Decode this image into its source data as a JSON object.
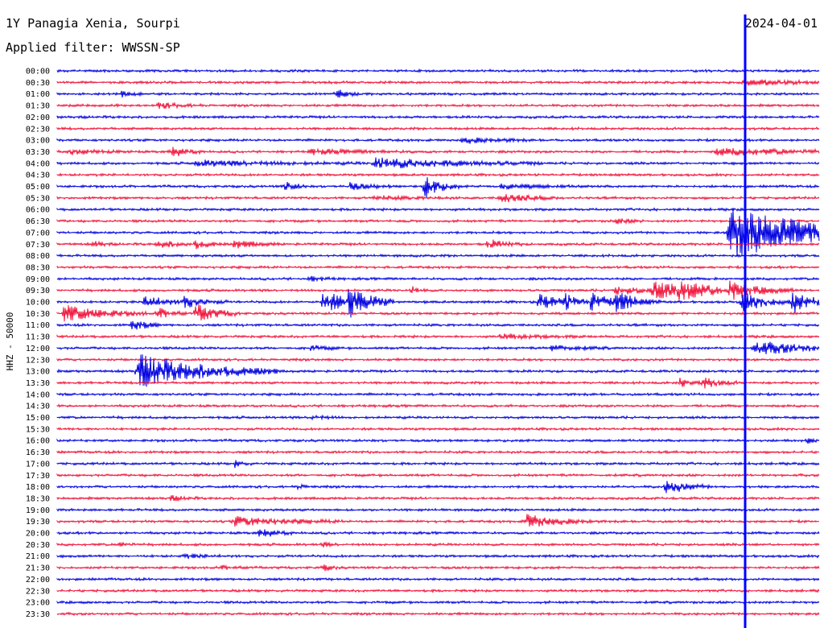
{
  "header": {
    "station": "1Y Panagia Xenia, Sourpi",
    "filter": "Applied filter: WWSSN-SP",
    "date": "2024-04-01"
  },
  "chart_data": {
    "type": "line",
    "title": "1Y Panagia Xenia, Sourpi",
    "subtitle": "Applied filter: WWSSN-SP",
    "ylabel": "HHZ - 50000",
    "colors": [
      "#0000e0",
      "#f0143c"
    ],
    "rows": [
      "00:00",
      "00:30",
      "01:00",
      "01:30",
      "02:00",
      "02:30",
      "03:00",
      "03:30",
      "04:00",
      "04:30",
      "05:00",
      "05:30",
      "06:00",
      "06:30",
      "07:00",
      "07:30",
      "08:00",
      "08:30",
      "09:00",
      "09:30",
      "10:00",
      "10:30",
      "11:00",
      "11:30",
      "12:00",
      "12:30",
      "13:00",
      "13:30",
      "14:00",
      "14:30",
      "15:00",
      "15:30",
      "16:00",
      "16:30",
      "17:00",
      "17:30",
      "18:00",
      "18:30",
      "19:00",
      "19:30",
      "20:00",
      "20:30",
      "21:00",
      "21:30",
      "22:00",
      "22:30",
      "23:00",
      "23:30"
    ],
    "minutes_per_row": 30,
    "events": [
      {
        "row": "00:30",
        "minute": 27,
        "amp": 0.5,
        "dur": 2
      },
      {
        "row": "01:00",
        "minute": 2.5,
        "amp": 0.5,
        "dur": 0.4
      },
      {
        "row": "01:00",
        "minute": 11,
        "amp": 0.8,
        "dur": 0.4
      },
      {
        "row": "01:30",
        "minute": 4,
        "amp": 0.5,
        "dur": 0.8
      },
      {
        "row": "03:00",
        "minute": 16,
        "amp": 0.5,
        "dur": 1.2
      },
      {
        "row": "03:30",
        "minute": 0.5,
        "amp": 0.4,
        "dur": 1.2
      },
      {
        "row": "03:30",
        "minute": 4.5,
        "amp": 0.9,
        "dur": 0.6
      },
      {
        "row": "03:30",
        "minute": 10,
        "amp": 0.4,
        "dur": 2
      },
      {
        "row": "03:30",
        "minute": 26,
        "amp": 0.6,
        "dur": 3.5
      },
      {
        "row": "04:00",
        "minute": 5.5,
        "amp": 0.5,
        "dur": 3
      },
      {
        "row": "04:00",
        "minute": 12.5,
        "amp": 1.0,
        "dur": 3
      },
      {
        "row": "05:00",
        "minute": 9,
        "amp": 0.8,
        "dur": 0.4
      },
      {
        "row": "05:00",
        "minute": 11.5,
        "amp": 0.6,
        "dur": 0.8
      },
      {
        "row": "05:00",
        "minute": 14.5,
        "amp": 2.0,
        "dur": 0.6
      },
      {
        "row": "05:00",
        "minute": 17.5,
        "amp": 0.4,
        "dur": 1.5
      },
      {
        "row": "05:30",
        "minute": 12.5,
        "amp": 0.3,
        "dur": 1.5
      },
      {
        "row": "05:30",
        "minute": 17.5,
        "amp": 0.9,
        "dur": 1
      },
      {
        "row": "06:30",
        "minute": 22,
        "amp": 0.5,
        "dur": 0.5
      },
      {
        "row": "07:00",
        "minute": 26.5,
        "amp": 5.0,
        "dur": 3
      },
      {
        "row": "07:30",
        "minute": 1.5,
        "amp": 0.5,
        "dur": 0.3
      },
      {
        "row": "07:30",
        "minute": 4,
        "amp": 0.6,
        "dur": 0.8
      },
      {
        "row": "07:30",
        "minute": 5.5,
        "amp": 0.7,
        "dur": 0.5
      },
      {
        "row": "07:30",
        "minute": 7,
        "amp": 0.7,
        "dur": 0.8
      },
      {
        "row": "07:30",
        "minute": 17,
        "amp": 0.8,
        "dur": 0.6
      },
      {
        "row": "09:00",
        "minute": 10,
        "amp": 0.4,
        "dur": 0.5
      },
      {
        "row": "09:30",
        "minute": 14,
        "amp": 0.6,
        "dur": 0.3
      },
      {
        "row": "09:30",
        "minute": 22,
        "amp": 0.6,
        "dur": 2
      },
      {
        "row": "09:30",
        "minute": 23.5,
        "amp": 1.2,
        "dur": 1.5
      },
      {
        "row": "09:30",
        "minute": 24.5,
        "amp": 1.0,
        "dur": 1.2
      },
      {
        "row": "09:30",
        "minute": 26.5,
        "amp": 1.5,
        "dur": 1.2
      },
      {
        "row": "10:00",
        "minute": 3.5,
        "amp": 1.2,
        "dur": 0.8
      },
      {
        "row": "10:00",
        "minute": 5,
        "amp": 1.0,
        "dur": 0.8
      },
      {
        "row": "10:00",
        "minute": 10.5,
        "amp": 1.8,
        "dur": 1.2
      },
      {
        "row": "10:00",
        "minute": 11.5,
        "amp": 2.0,
        "dur": 0.8
      },
      {
        "row": "10:00",
        "minute": 19,
        "amp": 1.5,
        "dur": 0.8
      },
      {
        "row": "10:00",
        "minute": 20,
        "amp": 1.0,
        "dur": 0.6
      },
      {
        "row": "10:00",
        "minute": 21,
        "amp": 1.5,
        "dur": 0.8
      },
      {
        "row": "10:00",
        "minute": 22,
        "amp": 1.5,
        "dur": 0.8
      },
      {
        "row": "10:00",
        "minute": 27,
        "amp": 1.5,
        "dur": 1
      },
      {
        "row": "10:00",
        "minute": 29,
        "amp": 1.8,
        "dur": 0.8
      },
      {
        "row": "10:30",
        "minute": 0.3,
        "amp": 1.5,
        "dur": 1.5
      },
      {
        "row": "10:30",
        "minute": 4,
        "amp": 1.0,
        "dur": 0.5
      },
      {
        "row": "10:30",
        "minute": 5.5,
        "amp": 1.5,
        "dur": 0.8
      },
      {
        "row": "11:00",
        "minute": 3,
        "amp": 1.0,
        "dur": 0.5
      },
      {
        "row": "11:30",
        "minute": 17.5,
        "amp": 0.4,
        "dur": 1.5
      },
      {
        "row": "12:00",
        "minute": 10,
        "amp": 0.5,
        "dur": 0.5
      },
      {
        "row": "12:00",
        "minute": 19.5,
        "amp": 0.5,
        "dur": 1
      },
      {
        "row": "12:00",
        "minute": 27.5,
        "amp": 1.2,
        "dur": 2
      },
      {
        "row": "13:00",
        "minute": 3.2,
        "amp": 3.0,
        "dur": 2.5
      },
      {
        "row": "13:30",
        "minute": 24.5,
        "amp": 0.8,
        "dur": 0.4
      },
      {
        "row": "13:30",
        "minute": 25.5,
        "amp": 0.9,
        "dur": 0.6
      },
      {
        "row": "15:00",
        "minute": 10,
        "amp": 0.4,
        "dur": 0.5
      },
      {
        "row": "16:00",
        "minute": 29.5,
        "amp": 0.4,
        "dur": 0.5
      },
      {
        "row": "17:00",
        "minute": 7,
        "amp": 0.6,
        "dur": 0.3
      },
      {
        "row": "18:00",
        "minute": 9.5,
        "amp": 0.4,
        "dur": 0.3
      },
      {
        "row": "18:00",
        "minute": 24,
        "amp": 1.2,
        "dur": 0.8
      },
      {
        "row": "18:30",
        "minute": 4.5,
        "amp": 0.4,
        "dur": 0.5
      },
      {
        "row": "19:30",
        "minute": 7,
        "amp": 0.8,
        "dur": 2
      },
      {
        "row": "19:30",
        "minute": 18.5,
        "amp": 1.2,
        "dur": 1.2
      },
      {
        "row": "20:00",
        "minute": 8,
        "amp": 0.8,
        "dur": 0.6
      },
      {
        "row": "20:30",
        "minute": 2.5,
        "amp": 0.5,
        "dur": 0.3
      },
      {
        "row": "20:30",
        "minute": 10.5,
        "amp": 0.3,
        "dur": 0.3
      },
      {
        "row": "21:00",
        "minute": 5,
        "amp": 0.3,
        "dur": 1
      },
      {
        "row": "21:30",
        "minute": 6.5,
        "amp": 0.3,
        "dur": 0.5
      },
      {
        "row": "21:30",
        "minute": 10.5,
        "amp": 0.5,
        "dur": 0.3
      }
    ]
  }
}
